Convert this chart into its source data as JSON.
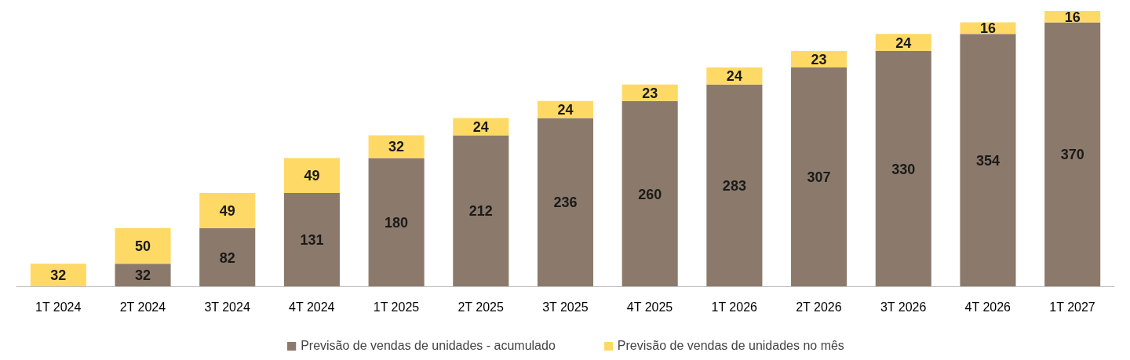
{
  "chart_data": {
    "type": "bar",
    "stacked": true,
    "data_labels": true,
    "legend": "bottom",
    "grid": false,
    "categories": [
      "1T 2024",
      "2T 2024",
      "3T 2024",
      "4T 2024",
      "1T 2025",
      "2T 2025",
      "3T 2025",
      "4T 2025",
      "1T 2026",
      "2T 2026",
      "3T 2026",
      "4T 2026",
      "1T 2027"
    ],
    "series": [
      {
        "name": "Previsão de vendas de unidades - acumulado",
        "color": "#8b7a6b",
        "values": [
          null,
          32,
          82,
          131,
          180,
          212,
          236,
          260,
          283,
          307,
          330,
          354,
          370
        ]
      },
      {
        "name": "Previsão de vendas de unidades no mês",
        "color": "#ffd966",
        "values": [
          32,
          50,
          49,
          49,
          32,
          24,
          24,
          23,
          24,
          23,
          24,
          16,
          16
        ]
      }
    ]
  }
}
